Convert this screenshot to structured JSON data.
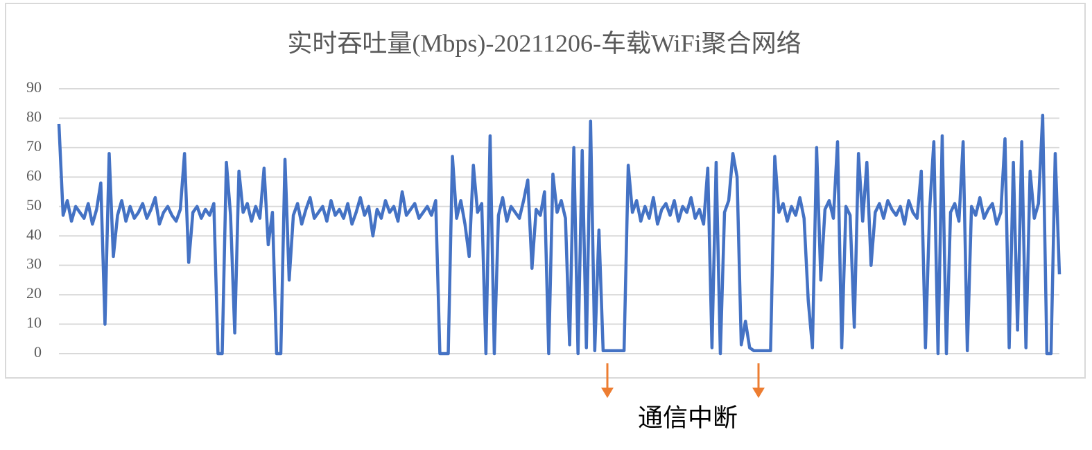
{
  "chart_data": {
    "type": "line",
    "title": "实时吞吐量(Mbps)-20211206-车载WiFi聚合网络",
    "annotation": "通信中断",
    "color": "#4472c4",
    "ylim": [
      0,
      90
    ],
    "yticks": [
      0,
      10,
      20,
      30,
      40,
      50,
      60,
      70,
      80,
      90
    ],
    "grid": true,
    "values": [
      78,
      47,
      52,
      45,
      50,
      48,
      46,
      51,
      44,
      49,
      58,
      10,
      68,
      33,
      47,
      52,
      45,
      50,
      46,
      48,
      51,
      46,
      49,
      53,
      44,
      48,
      50,
      47,
      45,
      49,
      68,
      31,
      48,
      50,
      46,
      49,
      47,
      51,
      0,
      0,
      65,
      47,
      7,
      62,
      48,
      51,
      45,
      50,
      46,
      63,
      37,
      48,
      0,
      0,
      66,
      25,
      47,
      51,
      44,
      49,
      53,
      46,
      48,
      50,
      45,
      52,
      47,
      49,
      46,
      51,
      44,
      48,
      53,
      47,
      50,
      40,
      49,
      46,
      52,
      48,
      50,
      45,
      55,
      47,
      49,
      51,
      46,
      48,
      50,
      47,
      52,
      0,
      0,
      0,
      67,
      46,
      52,
      44,
      33,
      64,
      48,
      51,
      0,
      74,
      0,
      47,
      53,
      45,
      50,
      48,
      46,
      52,
      59,
      29,
      49,
      47,
      55,
      0,
      61,
      48,
      52,
      46,
      3,
      70,
      0,
      69,
      2,
      79,
      1,
      42,
      1,
      1,
      1,
      1,
      1,
      1,
      64,
      48,
      52,
      45,
      50,
      46,
      53,
      44,
      49,
      51,
      47,
      52,
      45,
      50,
      48,
      53,
      46,
      49,
      44,
      63,
      2,
      65,
      0,
      48,
      52,
      68,
      60,
      3,
      11,
      2,
      1,
      1,
      1,
      1,
      1,
      67,
      48,
      51,
      45,
      50,
      47,
      53,
      46,
      18,
      2,
      70,
      25,
      49,
      52,
      46,
      72,
      2,
      50,
      47,
      9,
      68,
      45,
      65,
      30,
      48,
      51,
      46,
      52,
      49,
      47,
      50,
      44,
      52,
      48,
      46,
      62,
      2,
      49,
      72,
      0,
      74,
      0,
      48,
      51,
      45,
      72,
      1,
      50,
      47,
      53,
      46,
      49,
      51,
      44,
      48,
      73,
      2,
      65,
      8,
      72,
      2,
      62,
      46,
      51,
      81,
      0,
      0,
      68,
      27
    ]
  }
}
